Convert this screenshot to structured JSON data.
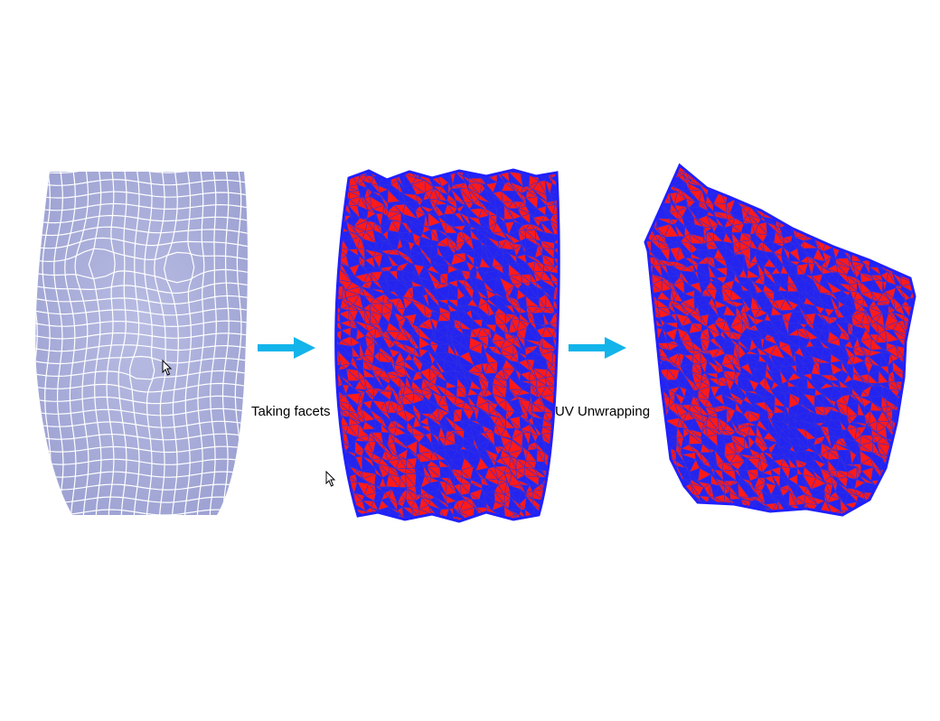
{
  "steps": [
    {
      "label": "Taking facets"
    },
    {
      "label": "UV Unwrapping"
    }
  ],
  "colors": {
    "mesh_fill": "#a6abd8",
    "mesh_lines": "#ffffff",
    "facet_red": "#ff1a1a",
    "facet_blue": "#2020ff",
    "arrow": "#12b4ea"
  },
  "icons": [
    "mouse-pointer-icon",
    "right-arrow-icon"
  ]
}
